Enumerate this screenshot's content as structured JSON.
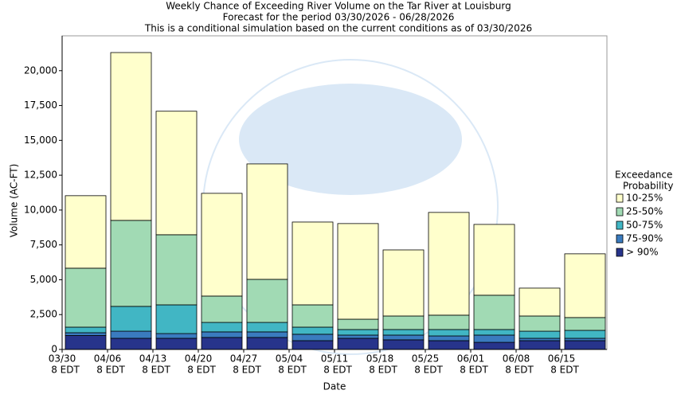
{
  "chart_data": {
    "type": "stacked-bar",
    "title": [
      "Weekly Chance of Exceeding River Volume on the Tar River at Louisburg",
      "Forecast for the period 03/30/2026 - 06/28/2026",
      "This is a conditional simulation based on the current conditions as of 03/30/2026"
    ],
    "x_label": "Date",
    "y_label": "Volume (AC-FT)",
    "categories": [
      "03/30",
      "04/06",
      "04/13",
      "04/20",
      "04/27",
      "05/04",
      "05/11",
      "05/18",
      "05/25",
      "06/01",
      "06/08",
      "06/15"
    ],
    "category_sublabels": [
      "8 EDT",
      "8 EDT",
      "8 EDT",
      "8 EDT",
      "8 EDT",
      "8 EDT",
      "8 EDT",
      "8 EDT",
      "8 EDT",
      "8 EDT",
      "8 EDT",
      "8 EDT"
    ],
    "legend_title": [
      "Exceedance",
      "Probability"
    ],
    "series": [
      {
        "name": "> 90%",
        "color": "#27348b",
        "values": [
          1000,
          800,
          800,
          860,
          860,
          630,
          800,
          690,
          630,
          510,
          630,
          630
        ]
      },
      {
        "name": "75-90%",
        "color": "#3a7bbf",
        "values": [
          200,
          510,
          340,
          400,
          400,
          460,
          230,
          340,
          340,
          520,
          170,
          170
        ]
      },
      {
        "name": "50-75%",
        "color": "#41b6c4",
        "values": [
          400,
          1780,
          2060,
          680,
          680,
          510,
          400,
          400,
          460,
          400,
          510,
          570
        ]
      },
      {
        "name": "25-50%",
        "color": "#a1dab4",
        "values": [
          4230,
          6170,
          5030,
          1890,
          3090,
          1600,
          740,
          970,
          1030,
          2460,
          1090,
          920
        ]
      },
      {
        "name": "10-25%",
        "color": "#ffffcc",
        "values": [
          5200,
          12040,
          8860,
          7370,
          8280,
          5940,
          6860,
          4740,
          7370,
          5080,
          2000,
          4570
        ]
      }
    ],
    "ylim": [
      0,
      22500
    ],
    "yticks": [
      0,
      {
        "value": 2500,
        "label": "2,500"
      },
      {
        "value": 5000,
        "label": "5,000"
      },
      {
        "value": 7500,
        "label": "7,500"
      },
      {
        "value": 10000,
        "label": "10,000"
      },
      {
        "value": 12500,
        "label": "12,500"
      },
      {
        "value": 15000,
        "label": "15,000"
      },
      {
        "value": 17500,
        "label": "17,500"
      },
      {
        "value": 20000,
        "label": "20,000"
      }
    ],
    "legend_position": "right"
  }
}
